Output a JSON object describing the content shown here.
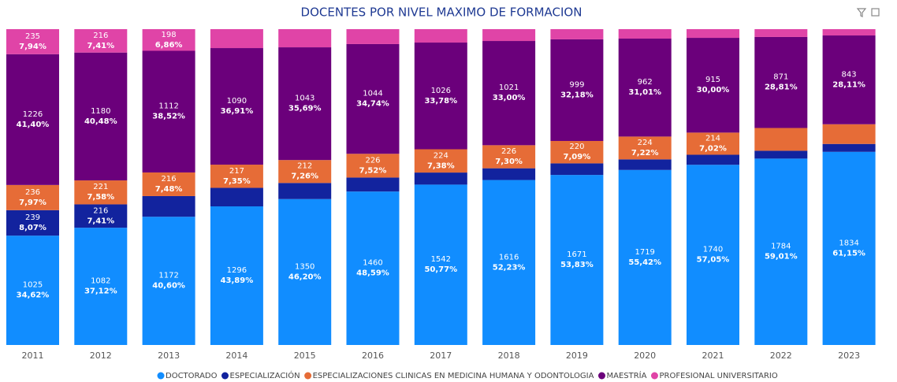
{
  "chart_data": {
    "type": "bar",
    "stacked": "percent",
    "title": "DOCENTES POR NIVEL MAXIMO DE FORMACION",
    "categories": [
      "2011",
      "2012",
      "2013",
      "2014",
      "2015",
      "2016",
      "2017",
      "2018",
      "2019",
      "2020",
      "2021",
      "2022",
      "2023"
    ],
    "series": [
      {
        "name": "DOCTORADO",
        "color": "#118dff",
        "values": [
          1025,
          1082,
          1172,
          1296,
          1350,
          1460,
          1542,
          1616,
          1671,
          1719,
          1740,
          1784,
          1834
        ],
        "value_labels": [
          "1025",
          "1082",
          "1172",
          "1296",
          "1350",
          "1460",
          "1542",
          "1616",
          "1671",
          "1719",
          "1740",
          "1784",
          "1834"
        ],
        "percent_labels": [
          "34,62%",
          "37,12%",
          "40,60%",
          "43,89%",
          "46,20%",
          "48,59%",
          "50,77%",
          "52,23%",
          "53,83%",
          "55,42%",
          "57,05%",
          "59,01%",
          "61,15%"
        ]
      },
      {
        "name": "ESPECIALIZACIÓN",
        "color": "#12239e",
        "values": [
          239,
          216,
          189,
          173,
          149,
          133,
          116,
          115,
          114,
          104,
          97,
          75,
          75
        ],
        "value_labels": [
          "239",
          "216",
          null,
          null,
          null,
          null,
          null,
          null,
          null,
          null,
          null,
          null,
          null
        ],
        "percent_labels": [
          "8,07%",
          "7,41%",
          null,
          null,
          null,
          null,
          null,
          null,
          null,
          null,
          null,
          null,
          null
        ]
      },
      {
        "name": "ESPECIALIZACIONES CLINICAS EN MEDICINA HUMANA Y ODONTOLOGIA",
        "color": "#e66c37",
        "values": [
          236,
          221,
          216,
          217,
          212,
          226,
          224,
          226,
          220,
          224,
          214,
          218,
          187
        ],
        "value_labels": [
          "236",
          "221",
          "216",
          "217",
          "212",
          "226",
          "224",
          "226",
          "220",
          "224",
          "214",
          null,
          null
        ],
        "percent_labels": [
          "7,97%",
          "7,58%",
          "7,48%",
          "7,35%",
          "7,26%",
          "7,52%",
          "7,38%",
          "7,30%",
          "7,09%",
          "7,22%",
          "7,02%",
          null,
          null
        ]
      },
      {
        "name": "MAESTRÍA",
        "color": "#6b007b",
        "values": [
          1226,
          1180,
          1112,
          1090,
          1043,
          1044,
          1026,
          1021,
          999,
          962,
          915,
          871,
          843
        ],
        "value_labels": [
          "1226",
          "1180",
          "1112",
          "1090",
          "1043",
          "1044",
          "1026",
          "1021",
          "999",
          "962",
          "915",
          "871",
          "843"
        ],
        "percent_labels": [
          "41,40%",
          "40,48%",
          "38,52%",
          "36,91%",
          "35,69%",
          "34,74%",
          "33,78%",
          "33,00%",
          "32,18%",
          "31,01%",
          "30,00%",
          "28,81%",
          "28,11%"
        ]
      },
      {
        "name": "PROFESIONAL UNIVERSITARIO",
        "color": "#e044a7",
        "values": [
          235,
          216,
          198,
          177,
          168,
          142,
          129,
          116,
          100,
          93,
          84,
          75,
          60
        ],
        "value_labels": [
          "235",
          "216",
          "198",
          null,
          null,
          null,
          null,
          null,
          null,
          null,
          null,
          null,
          null
        ],
        "percent_labels": [
          "7,94%",
          "7,41%",
          "6,86%",
          null,
          null,
          null,
          null,
          null,
          null,
          null,
          null,
          null,
          null
        ]
      }
    ]
  }
}
